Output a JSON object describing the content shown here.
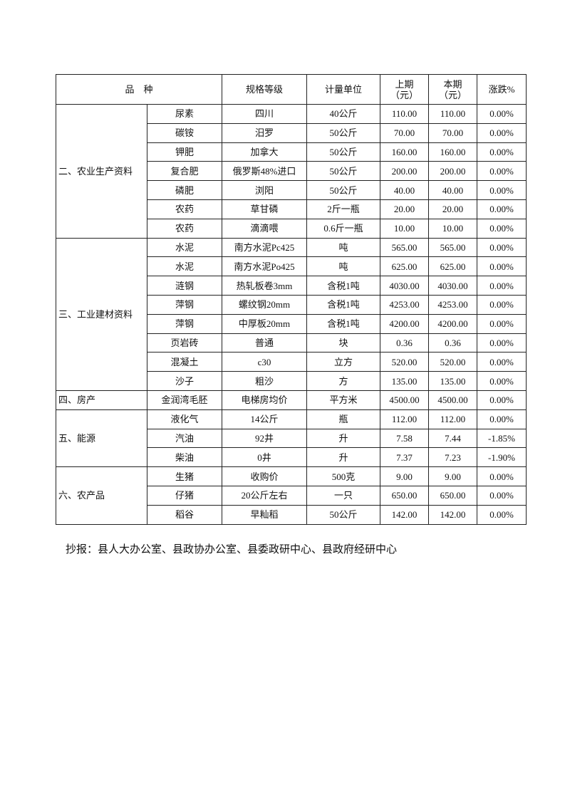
{
  "table": {
    "headers": {
      "variety": "品　种",
      "spec": "规格等级",
      "unit": "计量单位",
      "prev_line1": "上期",
      "prev_line2": "（元）",
      "curr_line1": "本期",
      "curr_line2": "（元）",
      "change": "涨跌%"
    },
    "groups": [
      {
        "label": "二、农业生产资料",
        "rows": [
          {
            "item": "尿素",
            "spec": "四川",
            "unit": "40公斤",
            "prev": "110.00",
            "curr": "110.00",
            "change": "0.00%"
          },
          {
            "item": "碳铵",
            "spec": "汨罗",
            "unit": "50公斤",
            "prev": "70.00",
            "curr": "70.00",
            "change": "0.00%"
          },
          {
            "item": "钾肥",
            "spec": "加拿大",
            "unit": "50公斤",
            "prev": "160.00",
            "curr": "160.00",
            "change": "0.00%"
          },
          {
            "item": "复合肥",
            "spec": "俄罗斯48%进口",
            "unit": "50公斤",
            "prev": "200.00",
            "curr": "200.00",
            "change": "0.00%"
          },
          {
            "item": "磷肥",
            "spec": "浏阳",
            "unit": "50公斤",
            "prev": "40.00",
            "curr": "40.00",
            "change": "0.00%"
          },
          {
            "item": "农药",
            "spec": "草甘磷",
            "unit": "2斤一瓶",
            "prev": "20.00",
            "curr": "20.00",
            "change": "0.00%"
          },
          {
            "item": "农药",
            "spec": "滴滴喂",
            "unit": "0.6斤一瓶",
            "prev": "10.00",
            "curr": "10.00",
            "change": "0.00%"
          }
        ]
      },
      {
        "label": "三、工业建材资料",
        "rows": [
          {
            "item": "水泥",
            "spec": "南方水泥Pc425",
            "unit": "吨",
            "prev": "565.00",
            "curr": "565.00",
            "change": "0.00%"
          },
          {
            "item": "水泥",
            "spec": "南方水泥Po425",
            "unit": "吨",
            "prev": "625.00",
            "curr": "625.00",
            "change": "0.00%"
          },
          {
            "item": "涟钢",
            "spec": "热轧板卷3mm",
            "unit": "含税1吨",
            "prev": "4030.00",
            "curr": "4030.00",
            "change": "0.00%"
          },
          {
            "item": "萍钢",
            "spec": "螺纹钢20mm",
            "unit": "含税1吨",
            "prev": "4253.00",
            "curr": "4253.00",
            "change": "0.00%"
          },
          {
            "item": "萍钢",
            "spec": "中厚板20mm",
            "unit": "含税1吨",
            "prev": "4200.00",
            "curr": "4200.00",
            "change": "0.00%"
          },
          {
            "item": "页岩砖",
            "spec": "普通",
            "unit": "块",
            "prev": "0.36",
            "curr": "0.36",
            "change": "0.00%"
          },
          {
            "item": "混凝土",
            "spec": "c30",
            "unit": "立方",
            "prev": "520.00",
            "curr": "520.00",
            "change": "0.00%"
          },
          {
            "item": "沙子",
            "spec": "粗沙",
            "unit": "方",
            "prev": "135.00",
            "curr": "135.00",
            "change": "0.00%"
          }
        ]
      },
      {
        "label": "四、房产",
        "rows": [
          {
            "item": "金润湾毛胚",
            "spec": "电梯房均价",
            "unit": "平方米",
            "prev": "4500.00",
            "curr": "4500.00",
            "change": "0.00%"
          }
        ]
      },
      {
        "label": "五、能源",
        "rows": [
          {
            "item": "液化气",
            "spec": "14公斤",
            "unit": "瓶",
            "prev": "112.00",
            "curr": "112.00",
            "change": "0.00%"
          },
          {
            "item": "汽油",
            "spec": "92井",
            "unit": "升",
            "prev": "7.58",
            "curr": "7.44",
            "change": "-1.85%"
          },
          {
            "item": "柴油",
            "spec": "0井",
            "unit": "升",
            "prev": "7.37",
            "curr": "7.23",
            "change": "-1.90%"
          }
        ]
      },
      {
        "label": "六、农产品",
        "rows": [
          {
            "item": "生猪",
            "spec": "收购价",
            "unit": "500克",
            "prev": "9.00",
            "curr": "9.00",
            "change": "0.00%"
          },
          {
            "item": "仔猪",
            "spec": "20公斤左右",
            "unit": "一只",
            "prev": "650.00",
            "curr": "650.00",
            "change": "0.00%"
          },
          {
            "item": "稻谷",
            "spec": "早籼稻",
            "unit": "50公斤",
            "prev": "142.00",
            "curr": "142.00",
            "change": "0.00%"
          }
        ]
      }
    ]
  },
  "footer": "抄报：县人大办公室、县政协办公室、县委政研中心、县政府经研中心"
}
